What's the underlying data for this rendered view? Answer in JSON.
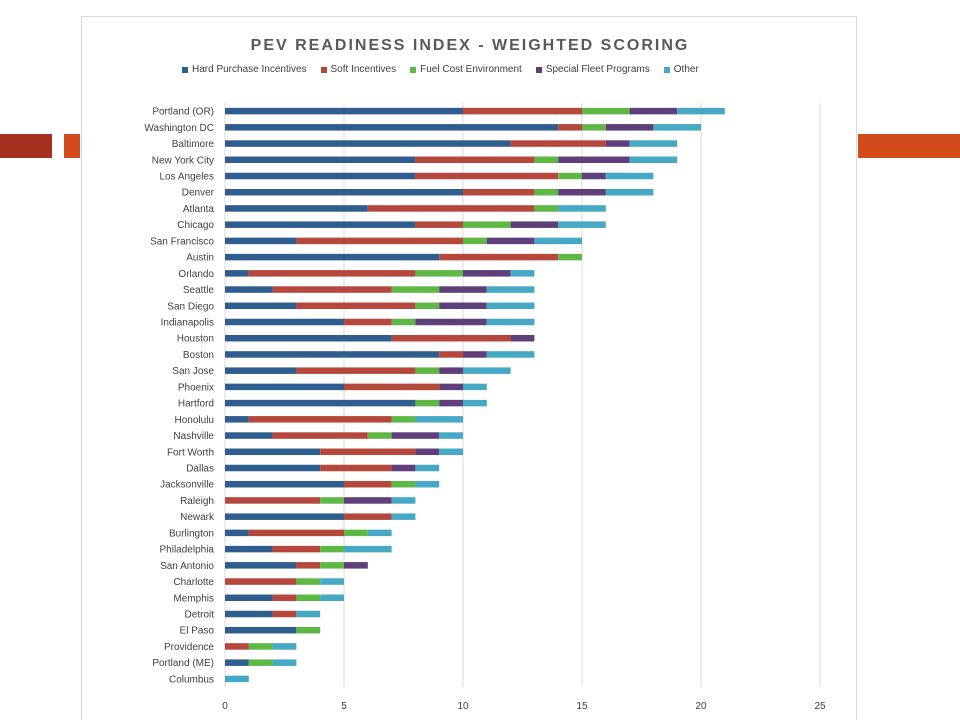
{
  "slide": {
    "accent_color": "#A5301F",
    "accent_right_color": "#D24B1A"
  },
  "chart_data": {
    "type": "bar",
    "orientation": "horizontal",
    "stacked": true,
    "title": "PEV READINESS INDEX - WEIGHTED SCORING",
    "legend_position": "top",
    "grid": true,
    "xlim": [
      0,
      25
    ],
    "xticks": [
      0,
      5,
      10,
      15,
      20,
      25
    ],
    "categories": [
      "Portland (OR)",
      "Washington DC",
      "Baltimore",
      "New York City",
      "Los Angeles",
      "Denver",
      "Atlanta",
      "Chicago",
      "San Francisco",
      "Austin",
      "Orlando",
      "Seattle",
      "San Diego",
      "Indianapolis",
      "Houston",
      "Boston",
      "San Jose",
      "Phoenix",
      "Hartford",
      "Honolulu",
      "Nashville",
      "Fort Worth",
      "Dallas",
      "Jacksonville",
      "Raleigh",
      "Newark",
      "Burlington",
      "Philadelphia",
      "San Antonio",
      "Charlotte",
      "Memphis",
      "Detroit",
      "El Paso",
      "Providence",
      "Portland (ME)",
      "Columbus"
    ],
    "series": [
      {
        "name": "Hard Purchase Incentives",
        "color": "#2E5D8E",
        "values": [
          10,
          14,
          12,
          8,
          8,
          10,
          6,
          8,
          3,
          9,
          1,
          2,
          3,
          5,
          7,
          9,
          3,
          5,
          8,
          1,
          2,
          4,
          4,
          5,
          0,
          5,
          1,
          2,
          3,
          0,
          2,
          2,
          3,
          0,
          1,
          0
        ]
      },
      {
        "name": "Soft Incentives",
        "color": "#B5473C",
        "values": [
          5,
          1,
          4,
          5,
          6,
          3,
          7,
          2,
          7,
          5,
          7,
          5,
          5,
          2,
          5,
          1,
          5,
          4,
          0,
          6,
          4,
          4,
          3,
          2,
          4,
          2,
          4,
          2,
          1,
          3,
          1,
          1,
          0,
          1,
          0,
          0
        ]
      },
      {
        "name": "Fuel Cost Environment",
        "color": "#5FB846",
        "values": [
          2,
          1,
          0,
          1,
          1,
          1,
          1,
          2,
          1,
          1,
          2,
          2,
          1,
          1,
          0,
          0,
          1,
          0,
          1,
          1,
          1,
          0,
          0,
          1,
          1,
          0,
          1,
          1,
          1,
          1,
          1,
          0,
          1,
          1,
          1,
          0
        ]
      },
      {
        "name": "Special Fleet Programs",
        "color": "#5E3F7A",
        "values": [
          2,
          2,
          1,
          3,
          1,
          2,
          0,
          2,
          2,
          0,
          2,
          2,
          2,
          3,
          1,
          1,
          1,
          1,
          1,
          0,
          2,
          1,
          1,
          0,
          2,
          0,
          0,
          0,
          1,
          0,
          0,
          0,
          0,
          0,
          0,
          0
        ]
      },
      {
        "name": "Other",
        "color": "#45A8C4",
        "values": [
          2,
          2,
          2,
          2,
          2,
          2,
          2,
          2,
          2,
          0,
          1,
          2,
          2,
          2,
          0,
          2,
          2,
          1,
          1,
          2,
          1,
          1,
          1,
          1,
          1,
          1,
          1,
          2,
          0,
          1,
          1,
          1,
          0,
          1,
          1,
          1
        ]
      }
    ]
  }
}
